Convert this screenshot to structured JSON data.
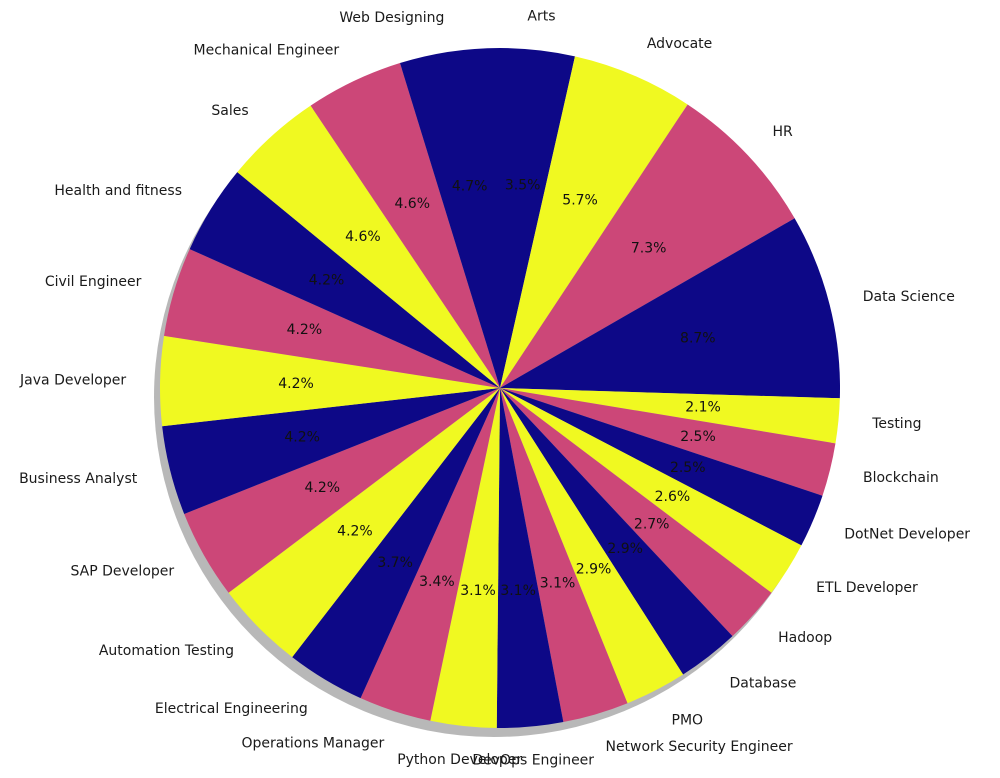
{
  "chart_data": {
    "type": "pie",
    "title": "",
    "start_angle_deg": 90,
    "direction": "clockwise",
    "shadow": true,
    "slices": [
      {
        "label": "Arts",
        "value": 3.5,
        "pct_text": "3.5%"
      },
      {
        "label": "Advocate",
        "value": 5.7,
        "pct_text": "5.7%"
      },
      {
        "label": "HR",
        "value": 7.3,
        "pct_text": "7.3%"
      },
      {
        "label": "Data Science",
        "value": 8.7,
        "pct_text": "8.7%"
      },
      {
        "label": "Testing",
        "value": 2.1,
        "pct_text": "2.1%"
      },
      {
        "label": "Blockchain",
        "value": 2.5,
        "pct_text": "2.5%"
      },
      {
        "label": "DotNet Developer",
        "value": 2.5,
        "pct_text": "2.5%"
      },
      {
        "label": "ETL Developer",
        "value": 2.6,
        "pct_text": "2.6%"
      },
      {
        "label": "Hadoop",
        "value": 2.7,
        "pct_text": "2.7%"
      },
      {
        "label": "Database",
        "value": 2.9,
        "pct_text": "2.9%"
      },
      {
        "label": "PMO",
        "value": 2.9,
        "pct_text": "2.9%"
      },
      {
        "label": "Network Security Engineer",
        "value": 3.1,
        "pct_text": "3.1%"
      },
      {
        "label": "DevOps Engineer",
        "value": 3.1,
        "pct_text": "3.1%"
      },
      {
        "label": "Python Developer",
        "value": 3.1,
        "pct_text": "3.1%"
      },
      {
        "label": "Operations Manager",
        "value": 3.4,
        "pct_text": "3.4%"
      },
      {
        "label": "Electrical Engineering",
        "value": 3.7,
        "pct_text": "3.7%"
      },
      {
        "label": "Automation Testing",
        "value": 4.2,
        "pct_text": "4.2%"
      },
      {
        "label": "SAP Developer",
        "value": 4.2,
        "pct_text": "4.2%"
      },
      {
        "label": "Business Analyst",
        "value": 4.2,
        "pct_text": "4.2%"
      },
      {
        "label": "Java Developer",
        "value": 4.2,
        "pct_text": "4.2%"
      },
      {
        "label": "Civil Engineer",
        "value": 4.2,
        "pct_text": "4.2%"
      },
      {
        "label": "Health and fitness",
        "value": 4.2,
        "pct_text": "4.2%"
      },
      {
        "label": "Sales",
        "value": 4.6,
        "pct_text": "4.6%"
      },
      {
        "label": "Mechanical Engineer",
        "value": 4.6,
        "pct_text": "4.6%"
      },
      {
        "label": "Web Designing",
        "value": 4.7,
        "pct_text": "4.7%"
      }
    ],
    "colors": [
      "#0d0887",
      "#f0f921",
      "#cc4778"
    ]
  }
}
